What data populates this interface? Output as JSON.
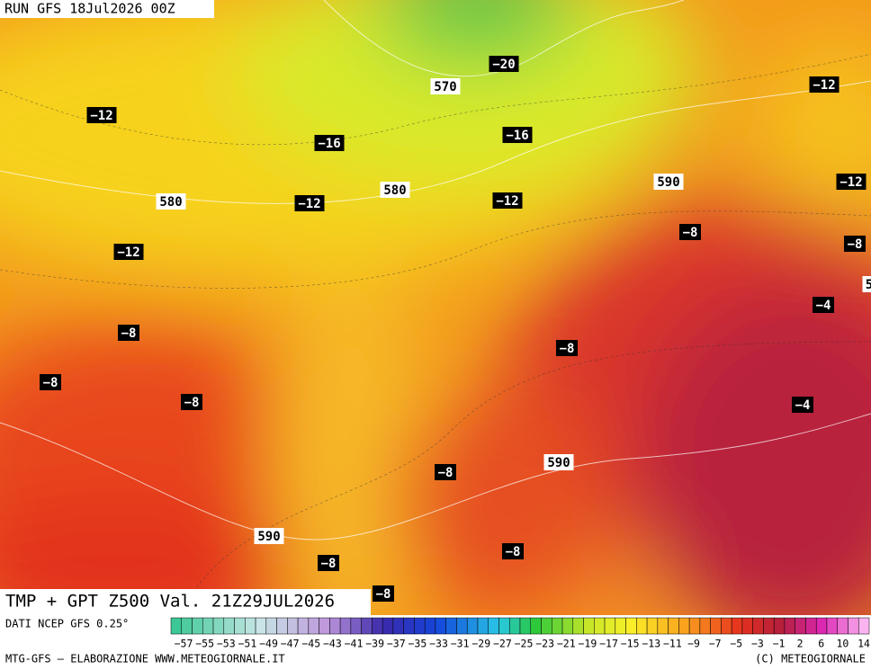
{
  "header": {
    "run": "RUN GFS 18Jul2026 00Z"
  },
  "map_labels": [
    "−20",
    "570",
    "−12",
    "−16",
    "−16",
    "−12",
    "580",
    "580",
    "590",
    "−12",
    "−12",
    "−12",
    "−12",
    "−8",
    "−8",
    "5",
    "−4",
    "−8",
    "−8",
    "−8",
    "−8",
    "−4",
    "−8",
    "590",
    "590",
    "−8",
    "−8",
    "−8"
  ],
  "footer": {
    "title": "TMP + GPT Z500 Val. 21Z29JUL2026",
    "source": "DATI NCEP GFS 0.25°",
    "credit": "MTG-GFS – ELABORAZIONE WWW.METEOGIORNALE.IT",
    "copyright": "(C) METEOGIORNALE"
  },
  "scale": {
    "labels": [
      "−57",
      "−55",
      "−53",
      "−51",
      "−49",
      "−47",
      "−45",
      "−43",
      "−41",
      "−39",
      "−37",
      "−35",
      "−33",
      "−31",
      "−29",
      "−27",
      "−25",
      "−23",
      "−21",
      "−19",
      "−17",
      "−15",
      "−13",
      "−11",
      "−9",
      "−7",
      "−5",
      "−3",
      "−1",
      "2",
      "6",
      "10",
      "14"
    ]
  }
}
